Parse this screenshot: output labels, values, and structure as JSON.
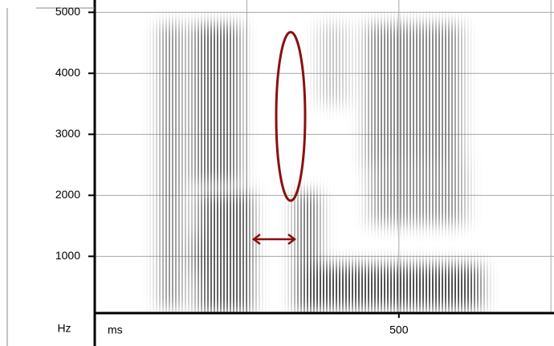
{
  "chart_data": {
    "type": "spectrogram",
    "y_label": "Hz",
    "x_label": "ms",
    "ylim": [
      70,
      5070
    ],
    "yticks": [
      1000,
      2000,
      3000,
      4000,
      5000
    ],
    "xlim": [
      0,
      755
    ],
    "xticks": [
      500
    ],
    "xgrid": [
      250,
      500,
      750
    ],
    "grid": true
  }
}
